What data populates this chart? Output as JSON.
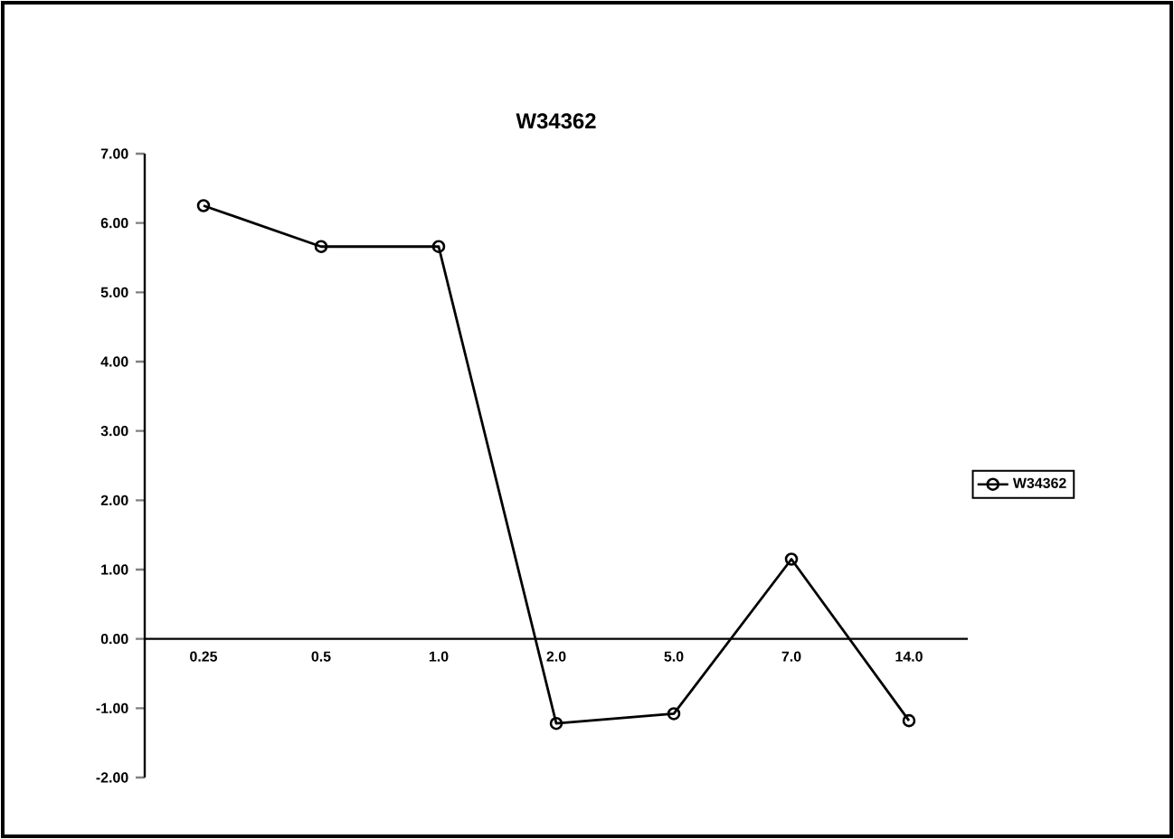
{
  "chart_data": {
    "type": "line",
    "title": "W34362",
    "categories": [
      "0.25",
      "0.5",
      "1.0",
      "2.0",
      "5.0",
      "7.0",
      "14.0"
    ],
    "series": [
      {
        "name": "W34362",
        "color": "#000000",
        "values": [
          6.25,
          5.66,
          5.66,
          -1.22,
          -1.08,
          1.15,
          -1.18
        ]
      }
    ],
    "ylim": [
      -2,
      7
    ],
    "yticks": [
      {
        "value": -2,
        "label": "-2.00"
      },
      {
        "value": -1,
        "label": "-1.00"
      },
      {
        "value": 0,
        "label": "0.00"
      },
      {
        "value": 1,
        "label": "1.00"
      },
      {
        "value": 2,
        "label": "2.00"
      },
      {
        "value": 3,
        "label": "3.00"
      },
      {
        "value": 4,
        "label": "4.00"
      },
      {
        "value": 5,
        "label": "5.00"
      },
      {
        "value": 6,
        "label": "6.00"
      },
      {
        "value": 7,
        "label": "7.00"
      }
    ],
    "legend": "right",
    "marker": "circle",
    "line_style": "solid",
    "grid": false
  }
}
